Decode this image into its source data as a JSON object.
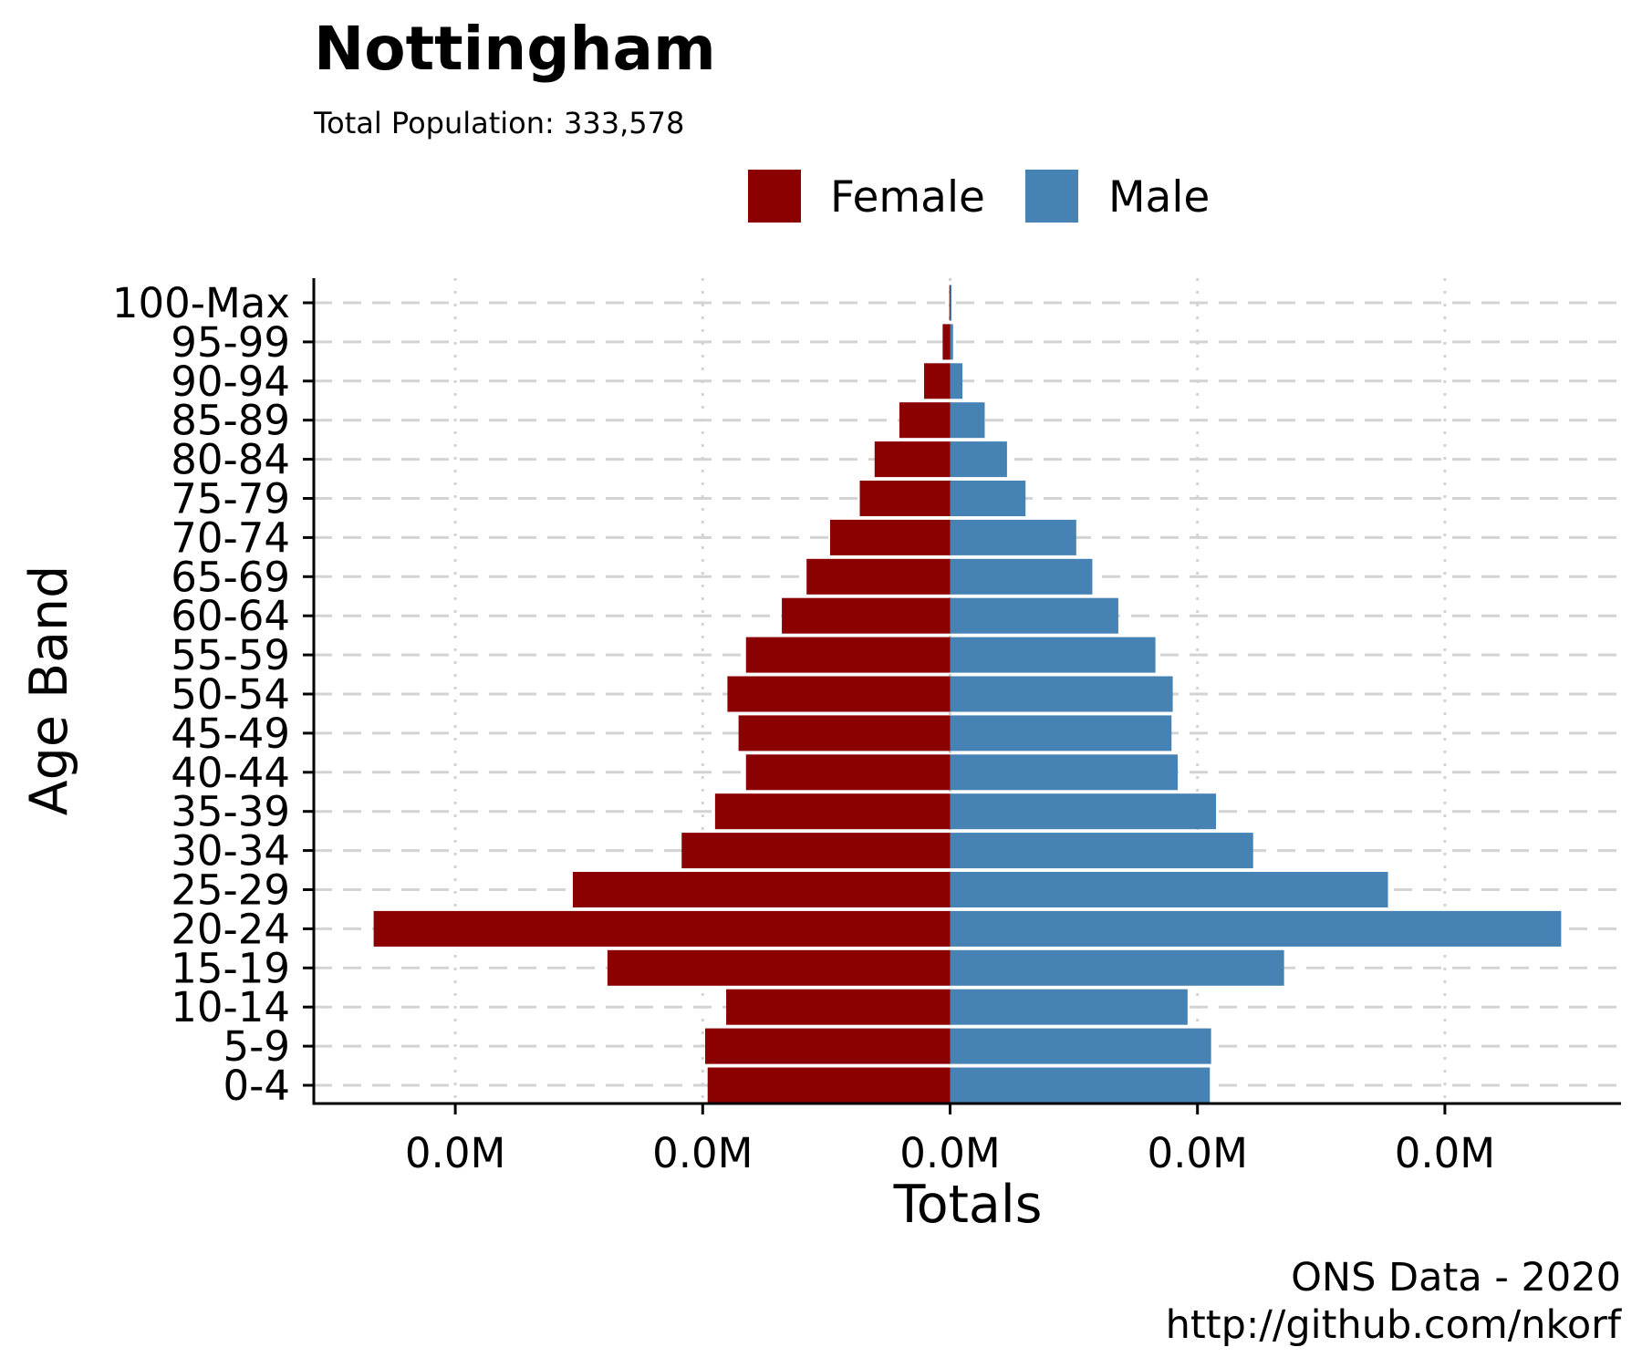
{
  "chart_data": {
    "type": "bar",
    "orientation": "horizontal-diverging",
    "title": "Nottingham",
    "subtitle": "Total Population:  333,578",
    "xlabel": "Totals",
    "ylabel": "Age Band",
    "caption_lines": [
      "ONS Data - 2020",
      "http://github.com/nkorf"
    ],
    "legend_position": "top",
    "grid": true,
    "x_tick_labels": [
      "0.0M",
      "0.0M",
      "0.0M",
      "0.0M",
      "0.0M"
    ],
    "x_ticks": [
      -20000,
      -10000,
      0,
      10000,
      20000
    ],
    "xlim": [
      -25700,
      27200
    ],
    "categories": [
      "0-4",
      "5-9",
      "10-14",
      "15-19",
      "20-24",
      "25-29",
      "30-34",
      "35-39",
      "40-44",
      "45-49",
      "50-54",
      "55-59",
      "60-64",
      "65-69",
      "70-74",
      "75-79",
      "80-84",
      "85-89",
      "90-94",
      "95-99",
      "100-Max"
    ],
    "series": [
      {
        "name": "Female",
        "color": "#8b0000",
        "values": [
          -9800,
          -9900,
          -9050,
          -13850,
          -23300,
          -15250,
          -10850,
          -9500,
          -8250,
          -8550,
          -9000,
          -8250,
          -6800,
          -5800,
          -4850,
          -3650,
          -3050,
          -2050,
          -1050,
          -300,
          -30
        ]
      },
      {
        "name": "Male",
        "color": "#4682b4",
        "values": [
          10500,
          10550,
          9600,
          13500,
          24700,
          17700,
          12250,
          10750,
          9200,
          8950,
          9000,
          8300,
          6800,
          5750,
          5100,
          3050,
          2300,
          1400,
          500,
          120,
          20
        ]
      }
    ]
  }
}
